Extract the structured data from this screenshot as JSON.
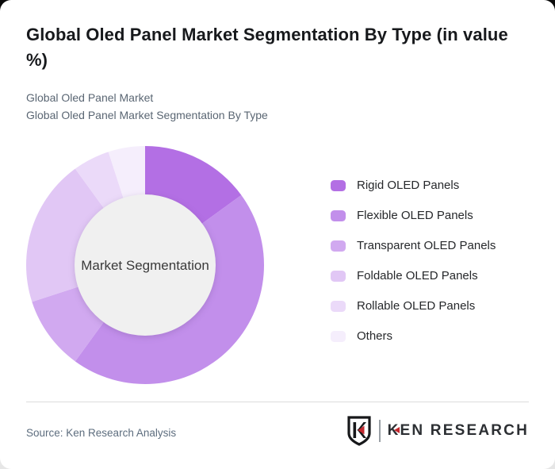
{
  "page": {
    "title": "Global Oled Panel Market Segmentation By Type (in value %)",
    "subtitle_line1": "Global Oled Panel Market",
    "subtitle_line2": "Global Oled Panel Market Segmentation By Type"
  },
  "chart_data": {
    "type": "pie",
    "subtype": "donut",
    "title": "Global Oled Panel Market Segmentation By Type (in value %)",
    "unit": "value %",
    "center_label": "Market Segmentation",
    "start_angle_deg": 0,
    "direction": "clockwise",
    "inner_radius_ratio": 0.59,
    "legend_position": "right",
    "segments": [
      {
        "label": "Rigid OLED Panels",
        "value": 15,
        "color": "#b36fe4"
      },
      {
        "label": "Flexible OLED Panels",
        "value": 45,
        "color": "#c28feb"
      },
      {
        "label": "Transparent OLED Panels",
        "value": 10,
        "color": "#d1a9f0"
      },
      {
        "label": "Foldable OLED Panels",
        "value": 20,
        "color": "#e1c7f5"
      },
      {
        "label": "Rollable OLED Panels",
        "value": 5,
        "color": "#ebdaf9"
      },
      {
        "label": "Others",
        "value": 5,
        "color": "#f5eefc"
      }
    ],
    "center_circle_color": "#f0f0f0"
  },
  "footer": {
    "source": "Source: Ken Research Analysis",
    "logo": {
      "shield_letter": "K",
      "wordmark_first_letter": "K",
      "wordmark_rest": "EN RESEARCH",
      "accent_color": "#c2272d"
    }
  }
}
